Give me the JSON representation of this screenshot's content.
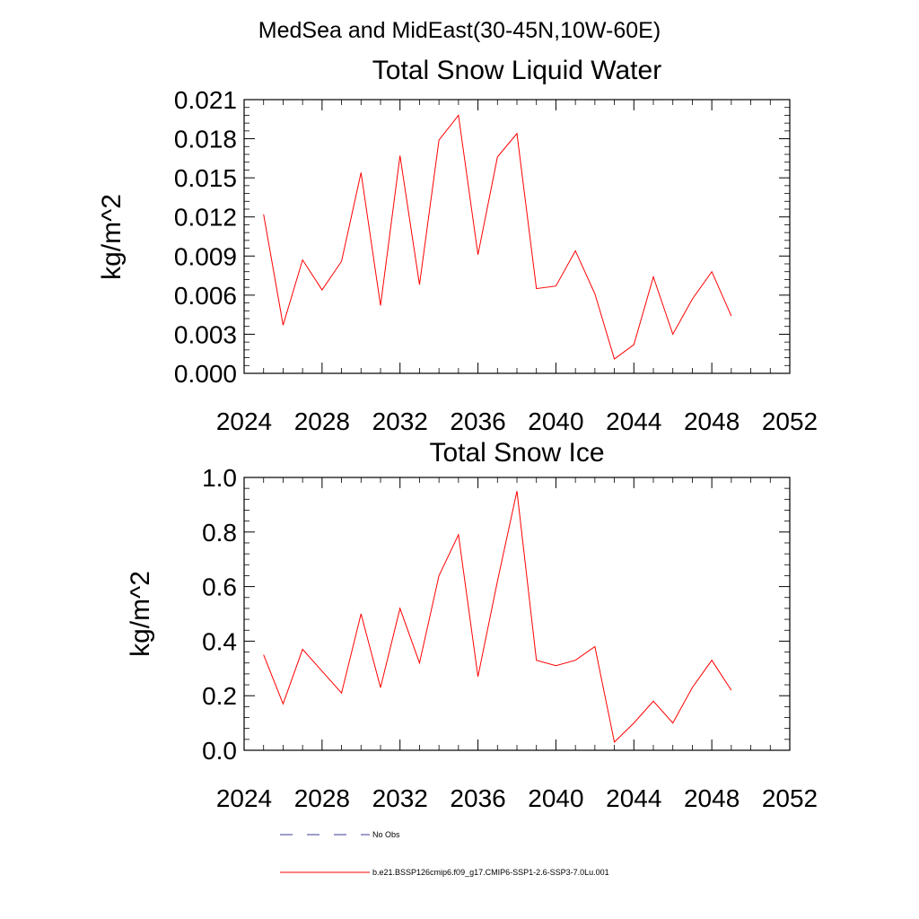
{
  "figure": {
    "main_title": "MedSea and MidEast(30-45N,10W-60E)"
  },
  "legend": {
    "entries": [
      {
        "label": "No Obs",
        "color": "#3b3b9a",
        "style": "dashed"
      },
      {
        "label": "b.e21.BSSP126cmip6.f09_g17.CMIP6-SSP1-2.6-SSP3-7.0Lu.001",
        "color": "#ff0000",
        "style": "solid"
      }
    ]
  },
  "chart_data": [
    {
      "type": "line",
      "title": "Total Snow Liquid Water",
      "xlabel": "",
      "ylabel": "kg/m^2",
      "xlim": [
        2024,
        2052
      ],
      "ylim": [
        0.0,
        0.021
      ],
      "x_ticks": [
        2024,
        2028,
        2032,
        2036,
        2040,
        2044,
        2048,
        2052
      ],
      "y_ticks": [
        0.0,
        0.003,
        0.006,
        0.009,
        0.012,
        0.015,
        0.018,
        0.021
      ],
      "y_tick_labels": [
        "0.000",
        "0.003",
        "0.006",
        "0.009",
        "0.012",
        "0.015",
        "0.018",
        "0.021"
      ],
      "grid": false,
      "series": [
        {
          "color": "#ff0000",
          "x": [
            2025,
            2026,
            2027,
            2028,
            2029,
            2030,
            2031,
            2032,
            2033,
            2034,
            2035,
            2036,
            2037,
            2038,
            2039,
            2040,
            2041,
            2042,
            2043,
            2044,
            2045,
            2046,
            2047,
            2048,
            2049
          ],
          "values": [
            0.0122,
            0.0037,
            0.0087,
            0.0064,
            0.0086,
            0.0154,
            0.0052,
            0.0167,
            0.0068,
            0.0179,
            0.0198,
            0.0091,
            0.0166,
            0.0184,
            0.0065,
            0.0067,
            0.0094,
            0.0061,
            0.0011,
            0.0022,
            0.0074,
            0.003,
            0.0057,
            0.0078,
            0.0044
          ]
        }
      ]
    },
    {
      "type": "line",
      "title": "Total Snow Ice",
      "xlabel": "",
      "ylabel": "kg/m^2",
      "xlim": [
        2024,
        2052
      ],
      "ylim": [
        0.0,
        1.0
      ],
      "x_ticks": [
        2024,
        2028,
        2032,
        2036,
        2040,
        2044,
        2048,
        2052
      ],
      "y_ticks": [
        0.0,
        0.2,
        0.4,
        0.6,
        0.8,
        1.0
      ],
      "y_tick_labels": [
        "0.0",
        "0.2",
        "0.4",
        "0.6",
        "0.8",
        "1.0"
      ],
      "grid": false,
      "series": [
        {
          "color": "#ff0000",
          "x": [
            2025,
            2026,
            2027,
            2028,
            2029,
            2030,
            2031,
            2032,
            2033,
            2034,
            2035,
            2036,
            2037,
            2038,
            2039,
            2040,
            2041,
            2042,
            2043,
            2044,
            2045,
            2046,
            2047,
            2048,
            2049
          ],
          "values": [
            0.35,
            0.17,
            0.37,
            0.29,
            0.21,
            0.5,
            0.23,
            0.52,
            0.32,
            0.64,
            0.79,
            0.27,
            0.62,
            0.95,
            0.33,
            0.31,
            0.33,
            0.38,
            0.03,
            0.1,
            0.18,
            0.1,
            0.23,
            0.33,
            0.22
          ]
        }
      ]
    }
  ]
}
